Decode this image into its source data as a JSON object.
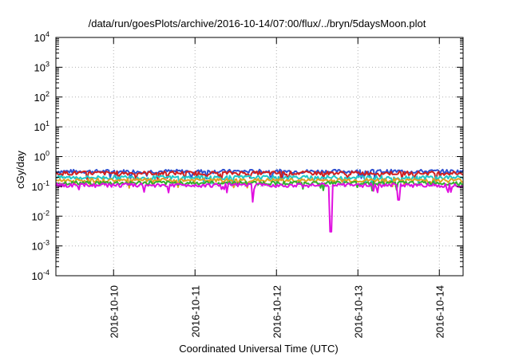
{
  "chart_data": {
    "type": "line",
    "title": "/data/run/goesPlots/archive/2016-10-14/07:00/flux/../bryn/5daysMoon.plot",
    "xlabel": "Coordinated Universal Time (UTC)",
    "ylabel": "cGy/day",
    "yscale": "log",
    "ylim": [
      0.0001,
      10000
    ],
    "xlim": [
      "2016-10-09T07:00",
      "2016-10-14T07:00"
    ],
    "grid": true,
    "legend": "none",
    "y_ticks": [
      {
        "base": "10",
        "exp": "-4"
      },
      {
        "base": "10",
        "exp": "-3"
      },
      {
        "base": "10",
        "exp": "-2"
      },
      {
        "base": "10",
        "exp": "-1"
      },
      {
        "base": "10",
        "exp": "0"
      },
      {
        "base": "10",
        "exp": "1"
      },
      {
        "base": "10",
        "exp": "2"
      },
      {
        "base": "10",
        "exp": "3"
      },
      {
        "base": "10",
        "exp": "4"
      }
    ],
    "x_ticks": [
      "2016-10-10",
      "2016-10-11",
      "2016-10-12",
      "2016-10-13",
      "2016-10-14"
    ],
    "series": [
      {
        "color": "#3050d0",
        "level": 0.32
      },
      {
        "color": "#d02020",
        "level": 0.28
      },
      {
        "color": "#20c8c8",
        "level": 0.2
      },
      {
        "color": "#e0a020",
        "level": 0.16
      },
      {
        "color": "#30b030",
        "level": 0.13
      },
      {
        "color": "#e010e0",
        "level": 0.11,
        "dips": [
          {
            "date": "2016-10-12T16:00",
            "value": 0.003
          },
          {
            "date": "2016-10-11T17:00",
            "value": 0.03
          },
          {
            "date": "2016-10-13T12:00",
            "value": 0.035
          }
        ]
      }
    ]
  }
}
